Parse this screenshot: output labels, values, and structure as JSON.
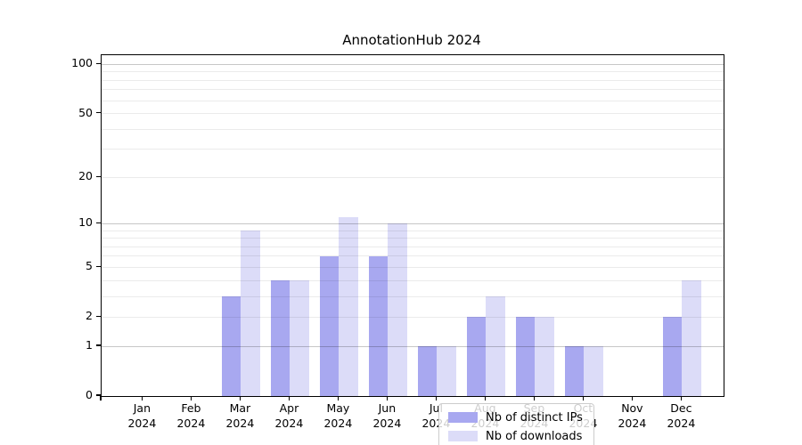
{
  "title": "AnnotationHub 2024",
  "chart_data": {
    "type": "bar",
    "title": "AnnotationHub 2024",
    "categories": [
      "Jan 2024",
      "Feb 2024",
      "Mar 2024",
      "Apr 2024",
      "May 2024",
      "Jun 2024",
      "Jul 2024",
      "Aug 2024",
      "Sep 2024",
      "Oct 2024",
      "Nov 2024",
      "Dec 2024"
    ],
    "series": [
      {
        "name": "Nb of distinct IPs",
        "color": "#a8a8f0",
        "values": [
          0,
          0,
          3,
          4,
          6,
          6,
          1,
          2,
          2,
          1,
          0,
          2
        ]
      },
      {
        "name": "Nb of downloads",
        "color": "#dcdcf8",
        "values": [
          0,
          0,
          9,
          4,
          11,
          10,
          1,
          3,
          2,
          1,
          0,
          4
        ]
      }
    ],
    "yscale": "log1p",
    "ylim": [
      0,
      114
    ],
    "yticks": [
      0,
      1,
      2,
      5,
      10,
      20,
      50,
      100
    ],
    "grid": {
      "major_values": [
        1,
        10,
        100
      ],
      "minor_values": [
        2,
        3,
        4,
        5,
        6,
        7,
        8,
        9,
        20,
        30,
        40,
        50,
        60,
        70,
        80,
        90
      ]
    },
    "legend_position": "lower center",
    "xlabel": "",
    "ylabel": ""
  },
  "colors": {
    "bar_distinct_ips": "#a8a8f0",
    "bar_downloads": "#dcdcf8",
    "grid_major": "#c7c7c7",
    "grid_minor": "#ebebeb",
    "axis": "#000000",
    "legend_border": "#cccccc"
  }
}
